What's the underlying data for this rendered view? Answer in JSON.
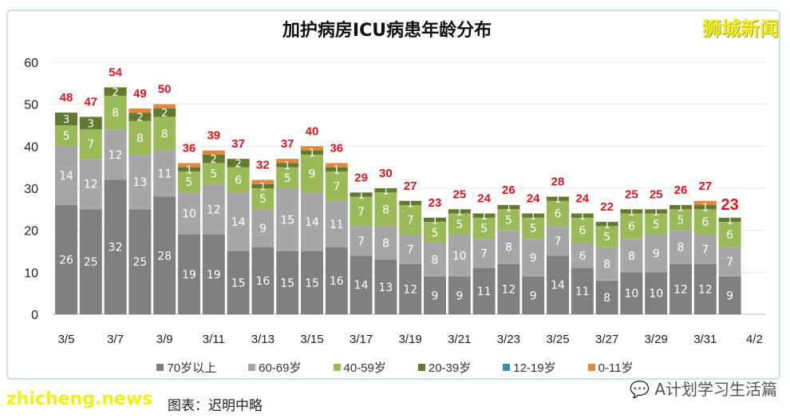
{
  "brand": "狮城新闻",
  "footer": "图表：迟明中略",
  "watermark": "zhicheng.news",
  "wechat": "A计划学习生活篇",
  "chart_data": {
    "type": "bar",
    "stacked": true,
    "title": "加护病房ICU病患年龄分布",
    "ylim": [
      0,
      60
    ],
    "yticks": [
      0,
      10,
      20,
      30,
      40,
      50,
      60
    ],
    "grid": true,
    "legend_position": "bottom",
    "categories": [
      "3/5",
      "3/6",
      "3/7",
      "3/8",
      "3/9",
      "3/10",
      "3/11",
      "3/12",
      "3/13",
      "3/14",
      "3/15",
      "3/16",
      "3/17",
      "3/18",
      "3/19",
      "3/20",
      "3/21",
      "3/22",
      "3/23",
      "3/24",
      "3/25",
      "3/26",
      "3/27",
      "3/28",
      "3/29",
      "3/30",
      "3/31",
      "4/1"
    ],
    "xtick_labels": [
      "3/5",
      "3/7",
      "3/9",
      "3/11",
      "3/13",
      "3/15",
      "3/17",
      "3/19",
      "3/21",
      "3/23",
      "3/25",
      "3/27",
      "3/29",
      "3/31",
      "4/2"
    ],
    "series": [
      {
        "name": "70岁以上",
        "color": "#807f82",
        "values": [
          26,
          25,
          32,
          25,
          28,
          19,
          19,
          15,
          16,
          15,
          15,
          16,
          14,
          13,
          12,
          9,
          9,
          11,
          12,
          9,
          14,
          11,
          8,
          10,
          10,
          12,
          12,
          9
        ]
      },
      {
        "name": "60-69岁",
        "color": "#a7a7a9",
        "values": [
          14,
          12,
          12,
          13,
          11,
          10,
          12,
          14,
          9,
          15,
          14,
          11,
          7,
          8,
          7,
          8,
          10,
          7,
          8,
          9,
          7,
          6,
          8,
          8,
          9,
          8,
          7,
          7
        ]
      },
      {
        "name": "40-59岁",
        "color": "#9bbb59",
        "values": [
          5,
          7,
          8,
          8,
          8,
          5,
          5,
          6,
          5,
          5,
          9,
          7,
          7,
          8,
          7,
          5,
          5,
          5,
          5,
          5,
          6,
          6,
          5,
          6,
          5,
          5,
          6,
          6
        ]
      },
      {
        "name": "20-39岁",
        "color": "#627a2e",
        "values": [
          3,
          3,
          2,
          2,
          2,
          1,
          2,
          2,
          1,
          1,
          1,
          1,
          1,
          1,
          1,
          1,
          1,
          1,
          1,
          1,
          1,
          1,
          1,
          1,
          1,
          1,
          1,
          1
        ]
      },
      {
        "name": "12-19岁",
        "color": "#3a8fa0",
        "values": [
          0,
          0,
          0,
          0,
          0,
          0,
          0,
          0,
          0,
          0,
          0,
          0,
          0,
          0,
          0,
          0,
          0,
          0,
          0,
          0,
          0,
          0,
          0,
          0,
          0,
          0,
          0,
          0
        ]
      },
      {
        "name": "0-11岁",
        "color": "#e0883f",
        "values": [
          0,
          0,
          0,
          1,
          1,
          1,
          1,
          0,
          1,
          1,
          1,
          1,
          0,
          0,
          0,
          0,
          0,
          0,
          0,
          0,
          0,
          0,
          0,
          0,
          0,
          0,
          1,
          0
        ]
      }
    ],
    "totals": [
      48,
      47,
      54,
      49,
      50,
      36,
      39,
      37,
      32,
      37,
      40,
      36,
      29,
      30,
      27,
      23,
      25,
      24,
      26,
      24,
      28,
      24,
      22,
      25,
      25,
      26,
      27,
      23
    ],
    "total_color": "#e0141e"
  }
}
